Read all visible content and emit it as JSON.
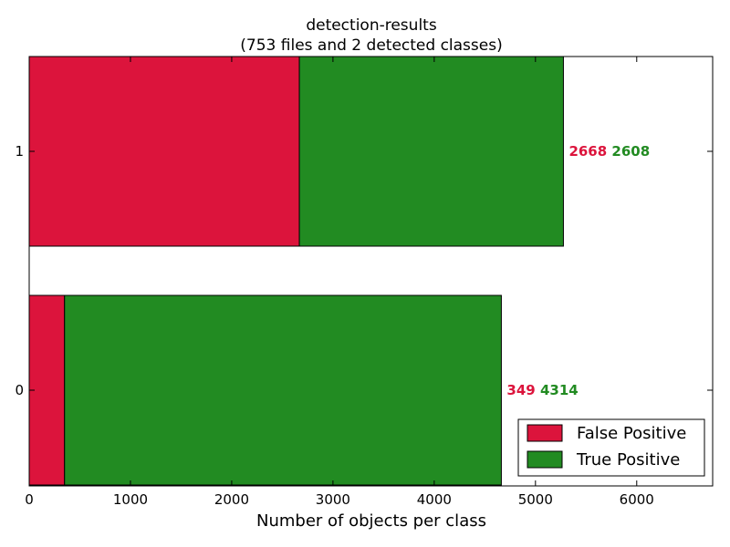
{
  "chart_data": {
    "type": "bar",
    "orientation": "horizontal",
    "stacked": true,
    "title": "detection-results",
    "subtitle": "(753 files and 2 detected classes)",
    "xlabel": "Number of objects per class",
    "ylabel": "",
    "xlim": [
      0,
      6750
    ],
    "x_ticks": [
      "0",
      "1000",
      "2000",
      "3000",
      "4000",
      "5000",
      "6000"
    ],
    "categories": [
      "0",
      "1"
    ],
    "series": [
      {
        "name": "False Positive",
        "color": "#DC143C",
        "values": [
          349,
          2668
        ]
      },
      {
        "name": "True Positive",
        "color": "#228B22",
        "values": [
          4314,
          2608
        ]
      }
    ],
    "legend_position": "lower-right",
    "grid": false
  }
}
